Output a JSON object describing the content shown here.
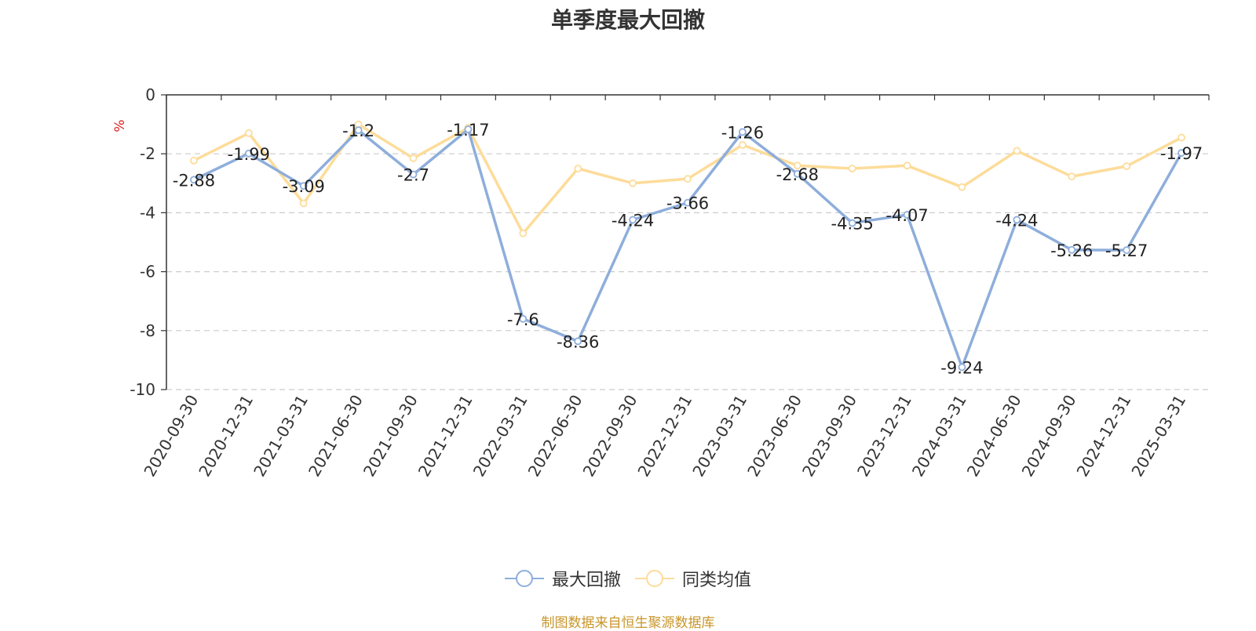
{
  "title": "单季度最大回撤",
  "source_note": "制图数据来自恒生聚源数据库",
  "colors": {
    "series1": "#8eaedb",
    "series2": "#fddc9a",
    "source": "#c8962a",
    "unit": "#e02020",
    "grid": "#cccccc",
    "axis": "#333333"
  },
  "chart_data": {
    "type": "line",
    "title": "单季度最大回撤",
    "ylabel": "%",
    "ylim": [
      -10,
      0
    ],
    "yticks": [
      0,
      -2,
      -4,
      -6,
      -8,
      -10
    ],
    "grid": true,
    "legend_position": "bottom",
    "categories": [
      "2020-09-30",
      "2020-12-31",
      "2021-03-31",
      "2021-06-30",
      "2021-09-30",
      "2021-12-31",
      "2022-03-31",
      "2022-06-30",
      "2022-09-30",
      "2022-12-31",
      "2023-03-31",
      "2023-06-30",
      "2023-09-30",
      "2023-12-31",
      "2024-03-31",
      "2024-06-30",
      "2024-09-30",
      "2024-12-31",
      "2025-03-31"
    ],
    "series": [
      {
        "name": "最大回撤",
        "values": [
          -2.88,
          -1.99,
          -3.09,
          -1.2,
          -2.7,
          -1.17,
          -7.6,
          -8.36,
          -4.24,
          -3.66,
          -1.26,
          -2.68,
          -4.35,
          -4.07,
          -9.24,
          -4.24,
          -5.26,
          -5.27,
          -1.97
        ],
        "labels": [
          "-2.88",
          "-1.99",
          "-3.09",
          "-1.2",
          "-2.7",
          "-1.17",
          "-7.6",
          "-8.36",
          "-4.24",
          "-3.66",
          "-1.26",
          "-2.68",
          "-4.35",
          "-4.07",
          "-9.24",
          "-4.24",
          "-5.26",
          "-5.27",
          "-1.97"
        ]
      },
      {
        "name": "同类均值",
        "values": [
          -2.23,
          -1.3,
          -3.68,
          -1.0,
          -2.15,
          -1.12,
          -4.7,
          -2.5,
          -3.0,
          -2.85,
          -1.7,
          -2.4,
          -2.5,
          -2.4,
          -3.13,
          -1.9,
          -2.77,
          -2.42,
          -1.45
        ]
      }
    ]
  }
}
